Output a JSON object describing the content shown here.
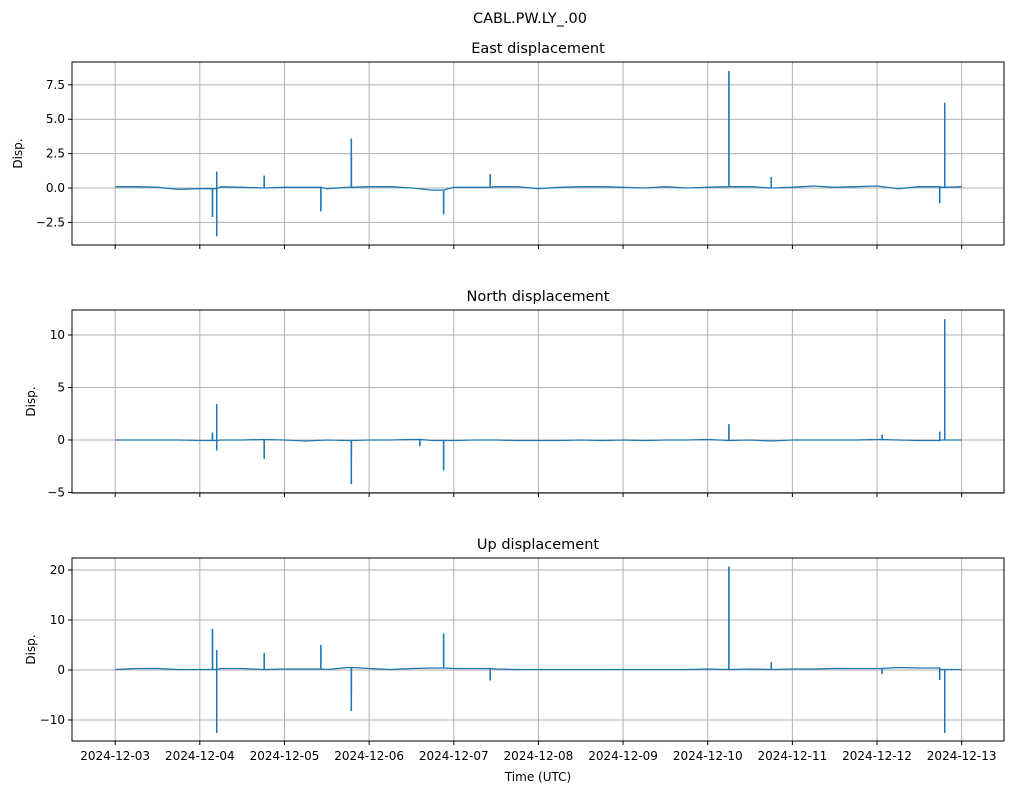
{
  "suptitle": "CABL.PW.LY_.00",
  "line_color": "#1f77b4",
  "grid_color": "#b0b0b0",
  "chart_data": [
    {
      "type": "line",
      "title": "East displacement",
      "ylabel": "Disp.",
      "xlabel": "",
      "ylim": [
        -4.14,
        9.16
      ],
      "yticks": [
        -2.5,
        0,
        2.5,
        5,
        7.5
      ],
      "ytick_labels": [
        "−2.5",
        "0.0",
        "2.5",
        "5.0",
        "7.5"
      ],
      "grid": true,
      "baseline_step_days": 0.25,
      "baseline": [
        0.1,
        0.1,
        0.05,
        -0.1,
        -0.05,
        0.1,
        0.05,
        0.0,
        0.05,
        0.05,
        -0.05,
        0.05,
        0.1,
        0.1,
        0.0,
        -0.15,
        0.05,
        0.05,
        0.1,
        0.1,
        -0.05,
        0.05,
        0.1,
        0.1,
        0.05,
        0.0,
        0.1,
        0.0,
        0.05,
        0.1,
        0.1,
        0.0,
        0.05,
        0.15,
        0.05,
        0.1,
        0.15,
        -0.05,
        0.1,
        0.05,
        0.1
      ],
      "spikes": [
        {
          "day": 1.15,
          "values": [
            -2.1
          ]
        },
        {
          "day": 1.2,
          "values": [
            1.2,
            -3.5
          ]
        },
        {
          "day": 1.76,
          "values": [
            0.9
          ]
        },
        {
          "day": 2.43,
          "values": [
            -1.7
          ]
        },
        {
          "day": 2.79,
          "values": [
            3.6,
            2.4
          ]
        },
        {
          "day": 3.88,
          "values": [
            -1.9
          ]
        },
        {
          "day": 4.43,
          "values": [
            1.0
          ]
        },
        {
          "day": 7.25,
          "values": [
            8.5
          ]
        },
        {
          "day": 7.75,
          "values": [
            0.8
          ]
        },
        {
          "day": 9.74,
          "values": [
            -1.1
          ]
        },
        {
          "day": 9.8,
          "values": [
            6.2
          ]
        }
      ]
    },
    {
      "type": "line",
      "title": "North displacement",
      "ylabel": "Disp.",
      "xlabel": "",
      "ylim": [
        -5.05,
        12.38
      ],
      "yticks": [
        -5,
        0,
        5,
        10
      ],
      "ytick_labels": [
        "−5",
        "0",
        "5",
        "10"
      ],
      "grid": true,
      "baseline_step_days": 0.25,
      "baseline": [
        0.0,
        0.0,
        0.0,
        0.0,
        -0.05,
        0.0,
        0.0,
        0.05,
        0.0,
        -0.1,
        0.0,
        -0.05,
        0.0,
        0.0,
        0.05,
        -0.05,
        -0.05,
        0.0,
        0.0,
        -0.05,
        -0.05,
        -0.05,
        0.0,
        -0.05,
        0.0,
        -0.05,
        0.0,
        0.0,
        0.05,
        -0.05,
        0.0,
        -0.1,
        0.0,
        0.0,
        0.0,
        0.0,
        0.05,
        0.0,
        -0.05,
        0.0,
        0.0
      ],
      "spikes": [
        {
          "day": 1.15,
          "values": [
            0.7
          ]
        },
        {
          "day": 1.2,
          "values": [
            3.4,
            -1.0
          ]
        },
        {
          "day": 1.76,
          "values": [
            -1.8
          ]
        },
        {
          "day": 2.79,
          "values": [
            -1.7,
            -4.2
          ]
        },
        {
          "day": 3.6,
          "values": [
            -0.6
          ]
        },
        {
          "day": 3.88,
          "values": [
            -2.9
          ]
        },
        {
          "day": 7.25,
          "values": [
            1.5
          ]
        },
        {
          "day": 9.06,
          "values": [
            0.5
          ]
        },
        {
          "day": 9.74,
          "values": [
            0.8
          ]
        },
        {
          "day": 9.8,
          "values": [
            11.5
          ]
        }
      ]
    },
    {
      "type": "line",
      "title": "Up displacement",
      "ylabel": "Disp.",
      "xlabel": "Time (UTC)",
      "ylim": [
        -14.2,
        22.4
      ],
      "yticks": [
        -10,
        0,
        10,
        20
      ],
      "ytick_labels": [
        "−10",
        "0",
        "10",
        "20"
      ],
      "grid": true,
      "baseline_step_days": 0.25,
      "baseline": [
        0.1,
        0.3,
        0.3,
        0.1,
        0.1,
        0.3,
        0.3,
        0.1,
        0.2,
        0.2,
        0.1,
        0.5,
        0.3,
        0.1,
        0.3,
        0.4,
        0.3,
        0.3,
        0.2,
        0.1,
        0.1,
        0.1,
        0.1,
        0.1,
        0.1,
        0.1,
        0.1,
        0.1,
        0.2,
        0.1,
        0.2,
        0.1,
        0.2,
        0.2,
        0.3,
        0.3,
        0.3,
        0.5,
        0.4,
        0.1,
        0.1
      ],
      "spikes": [
        {
          "day": 1.15,
          "values": [
            8.2
          ]
        },
        {
          "day": 1.2,
          "values": [
            4.0,
            -12.6
          ]
        },
        {
          "day": 1.76,
          "values": [
            3.4
          ]
        },
        {
          "day": 2.43,
          "values": [
            5.0
          ]
        },
        {
          "day": 2.79,
          "values": [
            -4.3,
            -8.2
          ]
        },
        {
          "day": 3.88,
          "values": [
            7.3
          ]
        },
        {
          "day": 4.43,
          "values": [
            -2.1
          ]
        },
        {
          "day": 7.25,
          "values": [
            20.7
          ]
        },
        {
          "day": 7.75,
          "values": [
            1.6
          ]
        },
        {
          "day": 9.06,
          "values": [
            -0.8
          ]
        },
        {
          "day": 9.74,
          "values": [
            -2.0
          ]
        },
        {
          "day": 9.8,
          "values": [
            -12.6
          ]
        }
      ]
    }
  ],
  "x_axis": {
    "xlim_days": [
      -0.51,
      10.5
    ],
    "tick_labels": [
      "2024-12-03",
      "2024-12-04",
      "2024-12-05",
      "2024-12-06",
      "2024-12-07",
      "2024-12-08",
      "2024-12-09",
      "2024-12-10",
      "2024-12-11",
      "2024-12-12",
      "2024-12-13"
    ]
  }
}
